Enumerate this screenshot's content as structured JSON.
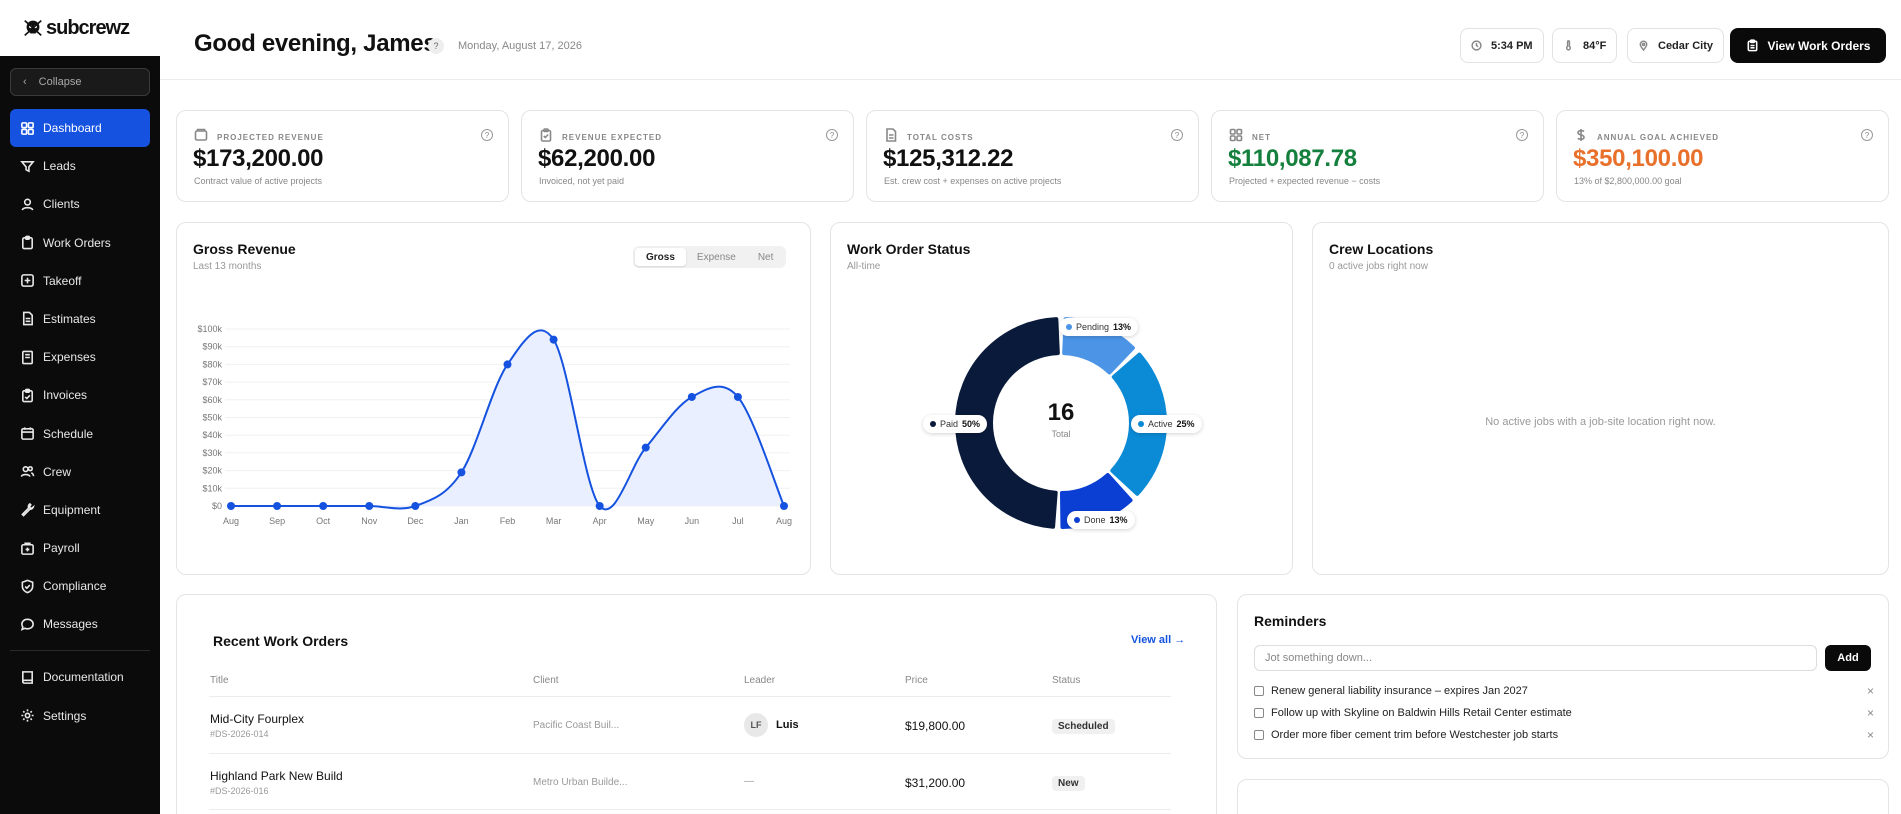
{
  "brand": {
    "name": "subcrewz"
  },
  "sidebar": {
    "collapse_label": "Collapse",
    "items": [
      {
        "label": "Dashboard",
        "icon": "grid-icon",
        "active": true
      },
      {
        "label": "Leads",
        "icon": "filter-icon"
      },
      {
        "label": "Clients",
        "icon": "user-icon"
      },
      {
        "label": "Work Orders",
        "icon": "clipboard-icon"
      },
      {
        "label": "Takeoff",
        "icon": "plus-square-icon"
      },
      {
        "label": "Estimates",
        "icon": "file-icon"
      },
      {
        "label": "Expenses",
        "icon": "receipt-icon"
      },
      {
        "label": "Invoices",
        "icon": "clipboard-check-icon"
      },
      {
        "label": "Schedule",
        "icon": "calendar-icon"
      },
      {
        "label": "Crew",
        "icon": "users-icon"
      },
      {
        "label": "Equipment",
        "icon": "wrench-icon"
      },
      {
        "label": "Payroll",
        "icon": "wallet-icon"
      },
      {
        "label": "Compliance",
        "icon": "shield-icon"
      },
      {
        "label": "Messages",
        "icon": "chat-icon"
      }
    ],
    "bottom_items": [
      {
        "label": "Documentation",
        "icon": "book-icon"
      },
      {
        "label": "Settings",
        "icon": "gear-icon"
      }
    ]
  },
  "header": {
    "greeting": "Good evening, James",
    "help": "?",
    "date": "Monday, August 17, 2026",
    "time": "5:34 PM",
    "temperature": "84°F",
    "location": "Cedar City",
    "view_button": "View Work Orders"
  },
  "stats": [
    {
      "label": "PROJECTED REVENUE",
      "value": "$173,200.00",
      "sub": "Contract value of active projects",
      "color": "#111111"
    },
    {
      "label": "REVENUE EXPECTED",
      "value": "$62,200.00",
      "sub": "Invoiced, not yet paid",
      "color": "#111111"
    },
    {
      "label": "TOTAL COSTS",
      "value": "$125,312.22",
      "sub": "Est. crew cost + expenses on active projects",
      "color": "#111111"
    },
    {
      "label": "NET",
      "value": "$110,087.78",
      "sub": "Projected + expected revenue − costs",
      "color": "#15803d"
    },
    {
      "label": "ANNUAL GOAL ACHIEVED",
      "value": "$350,100.00",
      "sub": "13% of $2,800,000.00 goal",
      "color": "#e8702a"
    }
  ],
  "gross_revenue": {
    "title": "Gross Revenue",
    "subtitle": "Last 13 months",
    "tabs": [
      "Gross",
      "Expense",
      "Net"
    ],
    "active_tab": "Gross"
  },
  "work_order_status": {
    "title": "Work Order Status",
    "subtitle": "All-time",
    "total": "16",
    "total_label": "Total"
  },
  "crew_locations": {
    "title": "Crew Locations",
    "subtitle": "0 active jobs right now",
    "empty": "No active jobs with a job-site location right now."
  },
  "recent": {
    "title": "Recent Work Orders",
    "view_all": "View all →",
    "columns": [
      "Title",
      "Client",
      "Leader",
      "Price",
      "Status"
    ],
    "rows": [
      {
        "title": "Mid-City Fourplex",
        "code": "#DS-2026-014",
        "client": "Pacific Coast Buil...",
        "leader_initials": "LF",
        "leader": "Luis",
        "price": "$19,800.00",
        "status": "Scheduled"
      },
      {
        "title": "Highland Park New Build",
        "code": "#DS-2026-016",
        "client": "Metro Urban Builde...",
        "leader_initials": "",
        "leader": "—",
        "price": "$31,200.00",
        "status": "New"
      }
    ]
  },
  "reminders": {
    "title": "Reminders",
    "placeholder": "Jot something down...",
    "add": "Add",
    "items": [
      "Renew general liability insurance – expires Jan 2027",
      "Follow up with Skyline on Baldwin Hills Retail Center estimate",
      "Order more fiber cement trim before Westchester job starts"
    ]
  },
  "chart_data": [
    {
      "type": "area",
      "title": "Gross Revenue",
      "x": [
        "Aug",
        "Sep",
        "Oct",
        "Nov",
        "Dec",
        "Jan",
        "Feb",
        "Mar",
        "Apr",
        "May",
        "Jun",
        "Jul",
        "Aug"
      ],
      "y_ticks": [
        "$0",
        "$10k",
        "$20k",
        "$30k",
        "$40k",
        "$50k",
        "$60k",
        "$70k",
        "$80k",
        "$90k",
        "$100k"
      ],
      "values": [
        0,
        0,
        0,
        0,
        0,
        19000,
        80000,
        94000,
        0,
        33000,
        61600,
        61600,
        0
      ],
      "ylim": [
        0,
        100000
      ],
      "color": "#1552e0",
      "grid": true
    },
    {
      "type": "pie",
      "title": "Work Order Status",
      "slices": [
        {
          "name": "Paid",
          "value": 50,
          "color": "#0a1a3a"
        },
        {
          "name": "Pending",
          "value": 13,
          "color": "#4b94e6"
        },
        {
          "name": "Active",
          "value": 25,
          "color": "#0b8ad6"
        },
        {
          "name": "Done",
          "value": 13,
          "color": "#0b3fd4"
        }
      ]
    }
  ]
}
